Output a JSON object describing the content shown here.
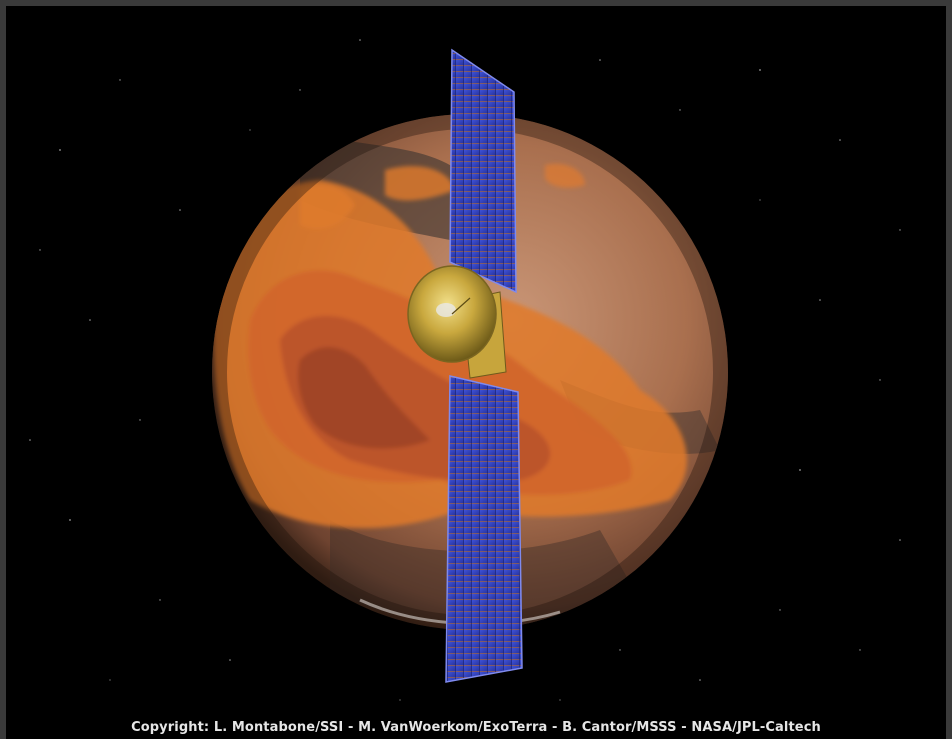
{
  "image": {
    "subject": "Orbiting spacecraft with solar panels in front of Mars with dust overlay",
    "colors": {
      "space": "#000000",
      "mars": "#a8643e",
      "dust": "#e0742c",
      "solar_panel": "#2f3fb8",
      "dish": "#b39a3a"
    }
  },
  "caption": {
    "text": "Copyright: L. Montabone/SSI - M. VanWoerkom/ExoTerra - B. Cantor/MSSS - NASA/JPL-Caltech"
  }
}
